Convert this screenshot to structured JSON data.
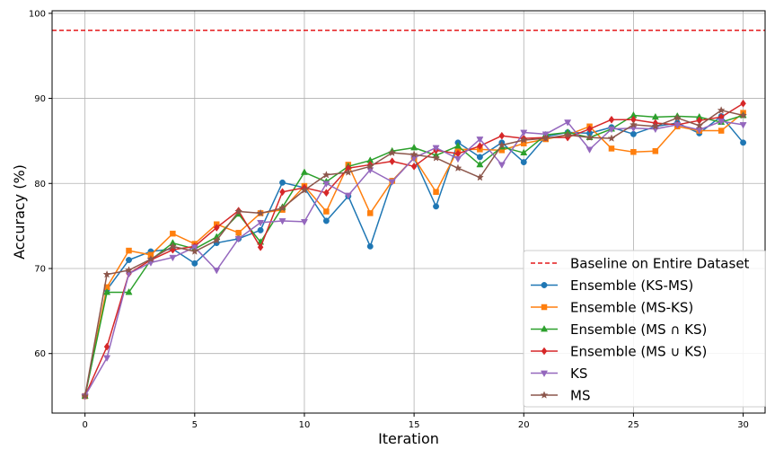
{
  "chart_data": {
    "type": "line",
    "xlabel": "Iteration",
    "ylabel": "Accuracy (%)",
    "xlim": [
      -1.5,
      31
    ],
    "ylim": [
      53,
      100.3
    ],
    "xticks": [
      0,
      5,
      10,
      15,
      20,
      25,
      30
    ],
    "yticks": [
      60,
      70,
      80,
      90,
      100
    ],
    "grid": true,
    "legend_position": "bottom-right",
    "baseline": {
      "name": "Baseline on Entire Dataset",
      "value": 98.0,
      "color": "#e41a1c",
      "style": "dashed"
    },
    "x": [
      0,
      1,
      2,
      3,
      4,
      5,
      6,
      7,
      8,
      9,
      10,
      11,
      12,
      13,
      14,
      15,
      16,
      17,
      18,
      19,
      20,
      21,
      22,
      23,
      24,
      25,
      26,
      27,
      28,
      29,
      30
    ],
    "series": [
      {
        "name": "Ensemble (KS-MS)",
        "color": "#1f77b4",
        "marker": "circle",
        "values": [
          55.0,
          67.5,
          71.0,
          72.0,
          72.3,
          70.6,
          73.0,
          73.5,
          74.5,
          80.1,
          79.5,
          75.6,
          78.5,
          72.6,
          80.3,
          83.0,
          77.3,
          84.8,
          83.1,
          84.8,
          82.5,
          85.5,
          86.0,
          85.9,
          86.6,
          85.8,
          86.7,
          87.1,
          85.9,
          87.9,
          84.8
        ]
      },
      {
        "name": "Ensemble (MS-KS)",
        "color": "#ff7f0e",
        "marker": "square",
        "values": [
          55.0,
          67.8,
          72.1,
          71.6,
          74.1,
          72.9,
          75.2,
          74.2,
          76.5,
          76.9,
          79.7,
          76.7,
          82.2,
          76.5,
          80.3,
          83.0,
          79.0,
          84.0,
          84.0,
          83.9,
          84.7,
          85.2,
          85.7,
          86.7,
          84.1,
          83.7,
          83.8,
          86.7,
          86.2,
          86.2,
          88.3
        ]
      },
      {
        "name": "Ensemble (MS ∩ KS)",
        "color": "#2ca02c",
        "marker": "triangle-up",
        "values": [
          55.0,
          67.2,
          67.2,
          71.0,
          73.0,
          72.3,
          73.7,
          76.4,
          73.1,
          77.2,
          81.3,
          80.2,
          82.0,
          82.7,
          83.8,
          84.2,
          83.3,
          84.4,
          82.2,
          84.3,
          83.6,
          85.7,
          86.0,
          85.4,
          86.4,
          88.0,
          87.8,
          87.9,
          87.8,
          87.2,
          88.0
        ]
      },
      {
        "name": "Ensemble (MS ∪ KS)",
        "color": "#d62728",
        "marker": "diamond",
        "values": [
          55.0,
          60.8,
          69.4,
          71.0,
          72.2,
          72.6,
          74.8,
          76.8,
          72.5,
          79.0,
          79.5,
          78.9,
          81.8,
          82.2,
          82.6,
          82.0,
          83.9,
          83.5,
          84.4,
          85.6,
          85.3,
          85.4,
          85.4,
          86.4,
          87.5,
          87.5,
          87.1,
          86.9,
          87.4,
          87.8,
          89.4
        ]
      },
      {
        "name": "KS",
        "color": "#9467bd",
        "marker": "triangle-down",
        "values": [
          55.0,
          59.5,
          69.4,
          70.7,
          71.3,
          72.5,
          69.8,
          73.5,
          75.4,
          75.6,
          75.5,
          80.0,
          78.6,
          81.6,
          80.2,
          83.0,
          84.2,
          82.9,
          85.2,
          82.2,
          86.0,
          85.8,
          87.2,
          84.0,
          86.4,
          86.5,
          86.4,
          86.9,
          86.3,
          87.3,
          86.9
        ]
      },
      {
        "name": "MS",
        "color": "#8c564b",
        "marker": "star",
        "values": [
          55.0,
          69.3,
          69.8,
          71.1,
          72.6,
          72.0,
          73.3,
          76.7,
          76.5,
          77.1,
          79.2,
          81.0,
          81.3,
          82.0,
          83.6,
          83.4,
          83.0,
          81.8,
          80.7,
          84.5,
          85.1,
          85.3,
          85.7,
          85.4,
          85.3,
          86.9,
          86.7,
          87.7,
          86.8,
          88.6,
          88.0
        ]
      }
    ]
  }
}
